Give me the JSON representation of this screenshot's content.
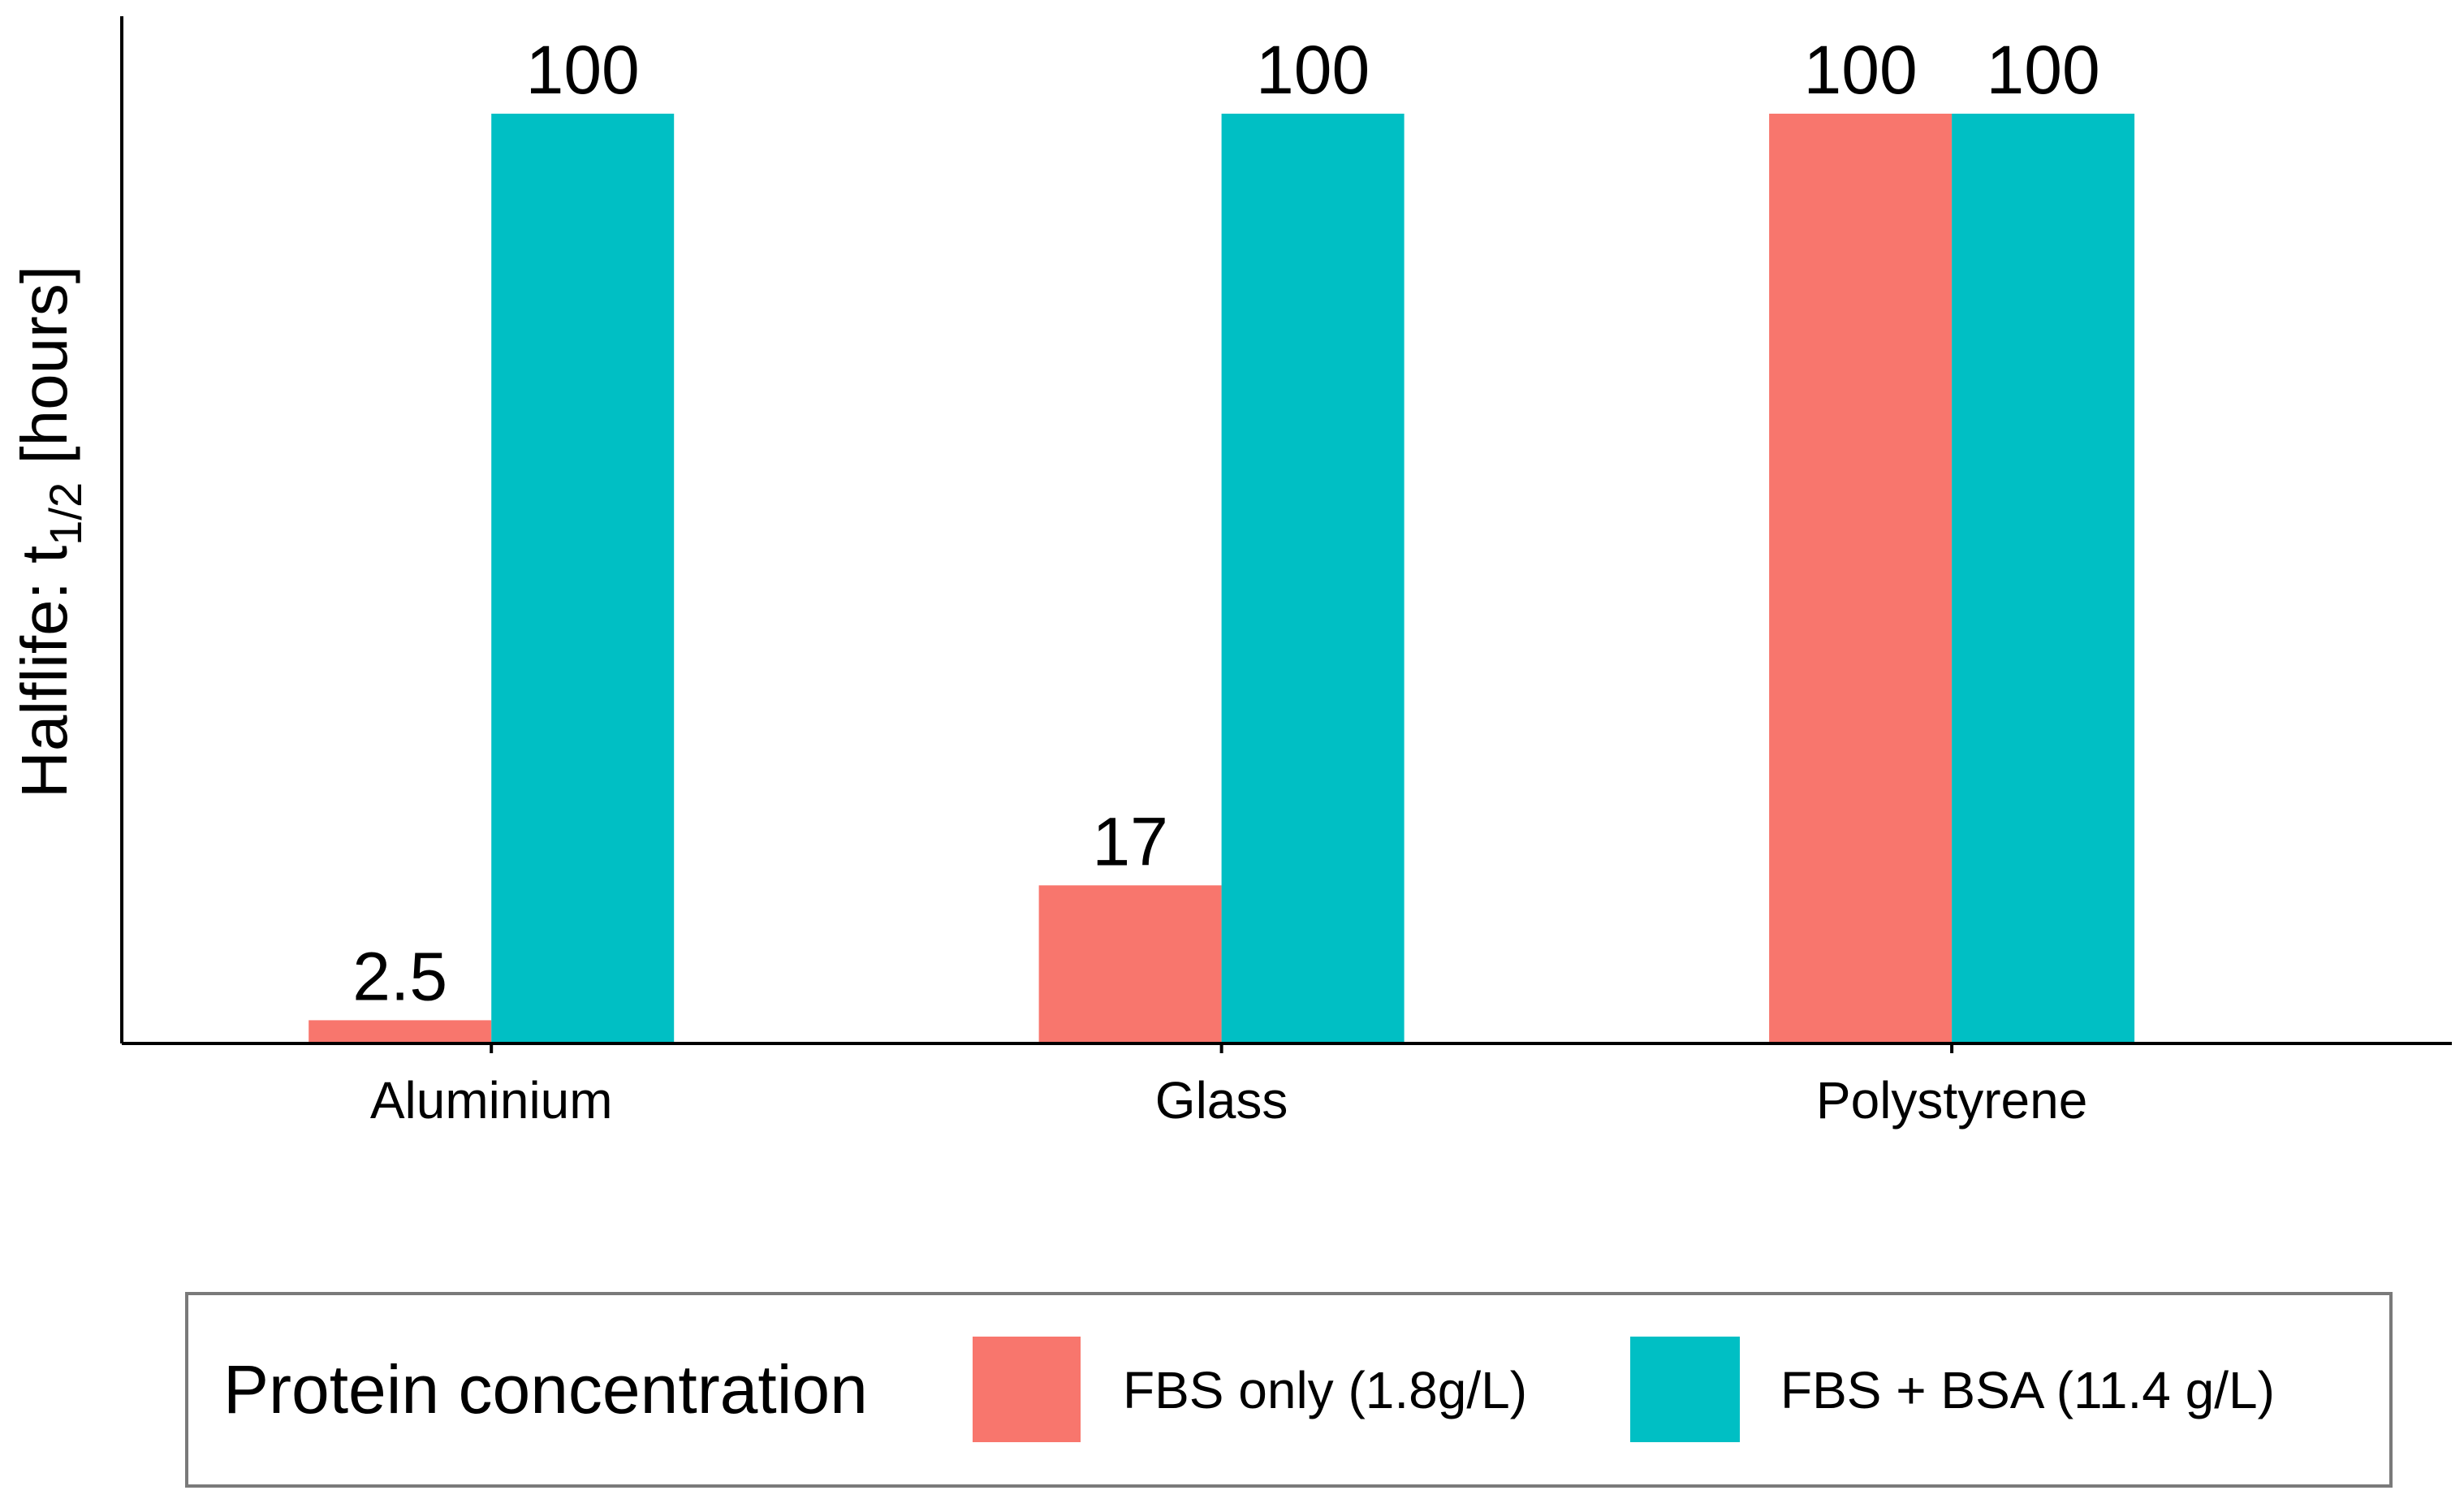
{
  "chart_data": {
    "type": "bar",
    "title": "",
    "xlabel": "",
    "ylabel": {
      "prefix": "Halflife:  t",
      "subscript": "1/2",
      "suffix": " [hours]"
    },
    "categories": [
      "Aluminium",
      "Glass",
      "Polystyrene"
    ],
    "series": [
      {
        "name": "FBS only (1.8g/L)",
        "color": "#F8766D",
        "values": [
          2.5,
          17,
          100
        ],
        "labels": [
          "2.5",
          "17",
          "100"
        ]
      },
      {
        "name": "FBS + BSA (11.4 g/L)",
        "color": "#00BFC4",
        "values": [
          100,
          100,
          100
        ],
        "labels": [
          "100",
          "100",
          "100"
        ]
      }
    ],
    "ylim": [
      0,
      100
    ],
    "y_ticks_shown": false,
    "grid": false,
    "legend": {
      "title": "Protein concentration",
      "position": "bottom"
    }
  }
}
